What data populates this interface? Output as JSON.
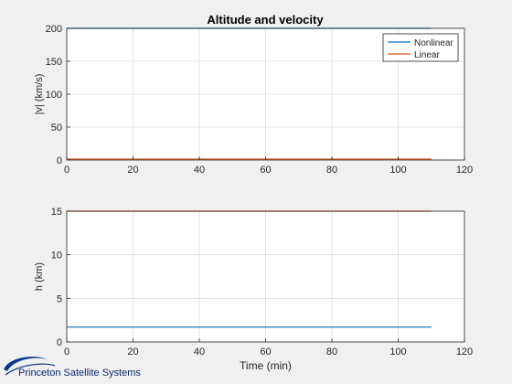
{
  "figure": {
    "title": "Altitude and velocity",
    "background": "#f0f0f0",
    "logo_text": "Princeton Satellite Systems"
  },
  "chart_data": [
    {
      "type": "line",
      "title": "Altitude and velocity",
      "xlabel": "",
      "ylabel": "|v| (km/s)",
      "xlim": [
        0,
        120
      ],
      "ylim": [
        0,
        200
      ],
      "xticks": [
        0,
        20,
        40,
        60,
        80,
        100,
        120
      ],
      "yticks": [
        0,
        50,
        100,
        150,
        200
      ],
      "grid": true,
      "legend": "top-right",
      "series": [
        {
          "name": "Nonlinear",
          "color": "#0072BD",
          "x": [
            0,
            110
          ],
          "y": [
            200,
            200
          ]
        },
        {
          "name": "Linear",
          "color": "#D95319",
          "x": [
            0,
            110
          ],
          "y": [
            1.5,
            1.5
          ]
        }
      ]
    },
    {
      "type": "line",
      "title": "",
      "xlabel": "Time (min)",
      "ylabel": "h  (km)",
      "xlim": [
        0,
        120
      ],
      "ylim": [
        0,
        15
      ],
      "xticks": [
        0,
        20,
        40,
        60,
        80,
        100,
        120
      ],
      "yticks": [
        0,
        5,
        10,
        15
      ],
      "grid": true,
      "legend": "none",
      "series": [
        {
          "color": "#0072BD",
          "x": [
            0,
            110
          ],
          "y": [
            1.7,
            1.7
          ]
        },
        {
          "color": "#D95319",
          "x": [
            0,
            110
          ],
          "y": [
            15,
            15
          ]
        }
      ]
    }
  ]
}
